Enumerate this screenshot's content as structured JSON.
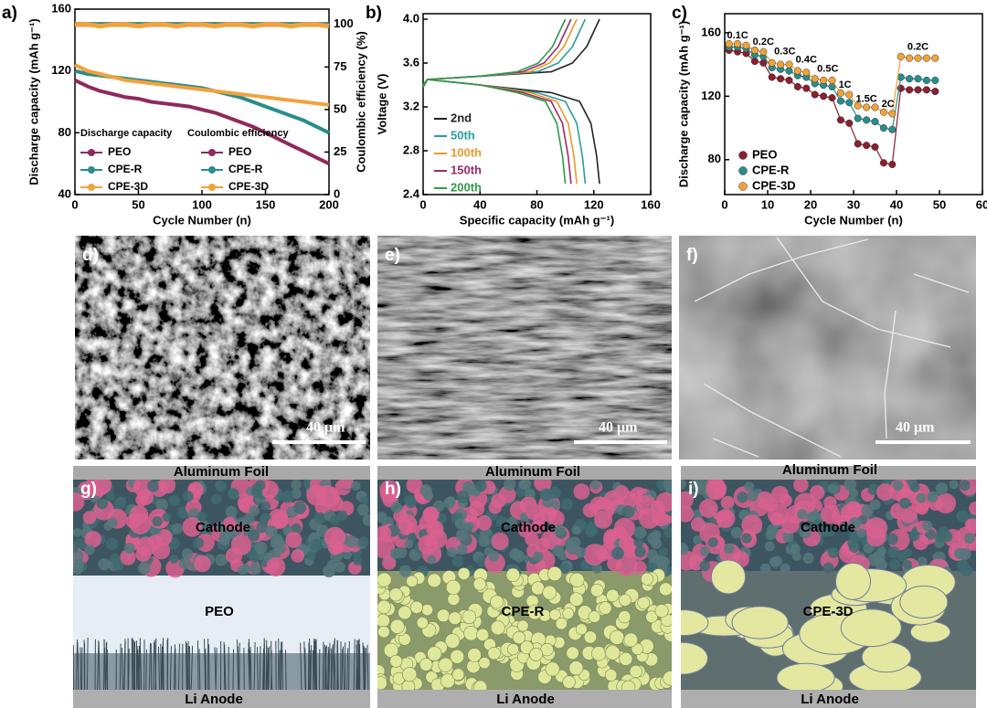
{
  "chart_data": [
    {
      "type": "line",
      "panel_label": "a)",
      "xlabel": "Cycle Number (n)",
      "ylabel": "Discharge capacity (mAh g⁻¹)",
      "y2label": "Coulombic efficiency (%)",
      "legend_titles": [
        "Discharge capacity",
        "Coulombic efficiency"
      ],
      "x": [
        0,
        10,
        20,
        30,
        40,
        50,
        60,
        70,
        80,
        90,
        100,
        110,
        120,
        130,
        140,
        150,
        160,
        170,
        180,
        190,
        200
      ],
      "xlim": [
        0,
        200
      ],
      "xticks": [
        0,
        50,
        100,
        150,
        200
      ],
      "ylim": [
        40,
        160
      ],
      "yticks": [
        40,
        80,
        120,
        160
      ],
      "y2lim": [
        0,
        109
      ],
      "y2ticks": [
        0,
        25,
        50,
        75,
        100
      ],
      "series": [
        {
          "name": "PEO",
          "color": "#8e2a5a",
          "values": [
            114,
            110,
            107,
            105,
            103,
            102,
            100,
            99,
            98,
            97,
            95,
            93,
            90,
            87,
            84,
            80,
            76,
            72,
            68,
            64,
            60
          ]
        },
        {
          "name": "CPE-R",
          "color": "#2a8c8c",
          "values": [
            120,
            118,
            117,
            116,
            115,
            114,
            113,
            112,
            111,
            110,
            109,
            107,
            105,
            103,
            100,
            97,
            94,
            91,
            88,
            84,
            80
          ]
        },
        {
          "name": "CPE-3D",
          "color": "#f2a23a",
          "values": [
            124,
            120,
            118,
            116,
            114,
            113,
            112,
            111,
            110,
            109,
            108,
            107,
            106,
            105,
            104,
            103,
            102,
            101,
            100,
            99,
            98
          ]
        },
        {
          "name": "PEO",
          "color": "#8e2a5a",
          "axis": "y2",
          "values": [
            100,
            100,
            100,
            100,
            100,
            100,
            100,
            100,
            100,
            100,
            100,
            100,
            100,
            100,
            100,
            100,
            100,
            100,
            100,
            100,
            100
          ]
        },
        {
          "name": "CPE-R",
          "color": "#2a8c8c",
          "axis": "y2",
          "values": [
            100,
            100,
            100,
            100,
            100,
            100,
            100,
            100,
            100,
            100,
            100,
            100,
            100,
            100,
            100,
            100,
            100,
            100,
            100,
            100,
            100
          ]
        },
        {
          "name": "CPE-3D",
          "color": "#f2a23a",
          "axis": "y2",
          "values": [
            100,
            100,
            99,
            100,
            100,
            99,
            100,
            100,
            99,
            100,
            100,
            99,
            100,
            100,
            99,
            100,
            100,
            99,
            100,
            100,
            99
          ]
        }
      ]
    },
    {
      "type": "line",
      "panel_label": "b)",
      "xlabel": "Specific capacity (mAh g⁻¹)",
      "ylabel": "Voltage (V)",
      "xlim": [
        0,
        160
      ],
      "xticks": [
        0,
        40,
        80,
        120,
        160
      ],
      "ylim": [
        2.4,
        4.05
      ],
      "yticks": [
        2.4,
        2.8,
        3.2,
        3.6,
        {
          "value": 4,
          "label": "4.0"
        }
      ],
      "series": [
        {
          "name": "2nd",
          "color": "#222222",
          "charge_x": [
            0,
            3,
            40,
            90,
            105,
            115,
            124
          ],
          "charge_values": [
            3.4,
            3.45,
            3.48,
            3.52,
            3.6,
            3.75,
            4.0
          ],
          "discharge_x": [
            0,
            3,
            40,
            90,
            110,
            118,
            122,
            124
          ],
          "discharge_values": [
            3.38,
            3.45,
            3.4,
            3.33,
            3.25,
            3.05,
            2.75,
            2.5
          ]
        },
        {
          "name": "50th",
          "color": "#2a9d9d",
          "charge_x": [
            0,
            3,
            40,
            80,
            95,
            105,
            114
          ],
          "charge_values": [
            3.4,
            3.45,
            3.48,
            3.52,
            3.6,
            3.75,
            4.0
          ],
          "discharge_x": [
            0,
            3,
            40,
            80,
            100,
            108,
            112,
            114
          ],
          "discharge_values": [
            3.38,
            3.45,
            3.4,
            3.33,
            3.25,
            3.05,
            2.75,
            2.5
          ]
        },
        {
          "name": "100th",
          "color": "#e89a28",
          "charge_x": [
            0,
            3,
            40,
            75,
            89,
            99,
            108
          ],
          "charge_values": [
            3.4,
            3.45,
            3.48,
            3.52,
            3.6,
            3.75,
            4.0
          ],
          "discharge_x": [
            0,
            3,
            40,
            75,
            94,
            102,
            106,
            108
          ],
          "discharge_values": [
            3.38,
            3.45,
            3.4,
            3.33,
            3.25,
            3.05,
            2.75,
            2.5
          ]
        },
        {
          "name": "150th",
          "color": "#9b2a6a",
          "charge_x": [
            0,
            3,
            40,
            70,
            85,
            95,
            104
          ],
          "charge_values": [
            3.4,
            3.45,
            3.48,
            3.52,
            3.6,
            3.75,
            4.0
          ],
          "discharge_x": [
            0,
            3,
            40,
            70,
            90,
            98,
            102,
            104
          ],
          "discharge_values": [
            3.38,
            3.45,
            3.4,
            3.33,
            3.25,
            3.05,
            2.75,
            2.5
          ]
        },
        {
          "name": "200th",
          "color": "#2e9a4a",
          "charge_x": [
            0,
            3,
            40,
            66,
            81,
            91,
            100
          ],
          "charge_values": [
            3.4,
            3.45,
            3.48,
            3.52,
            3.6,
            3.75,
            4.0
          ],
          "discharge_x": [
            0,
            3,
            40,
            66,
            86,
            94,
            98,
            100
          ],
          "discharge_values": [
            3.38,
            3.45,
            3.4,
            3.33,
            3.25,
            3.05,
            2.75,
            2.5
          ]
        }
      ]
    },
    {
      "type": "scatter",
      "panel_label": "c)",
      "xlabel": "Cycle Number (n)",
      "ylabel": "Discharge capacity (mAh g⁻¹)",
      "x": [
        1,
        3,
        5,
        7,
        9,
        11,
        13,
        15,
        17,
        19,
        21,
        23,
        25,
        27,
        29,
        31,
        33,
        35,
        37,
        39,
        41,
        43,
        45,
        47,
        49
      ],
      "xlim": [
        0,
        60
      ],
      "xticks": [
        0,
        10,
        20,
        30,
        40,
        50,
        60
      ],
      "ylim": [
        58,
        172
      ],
      "yticks": [
        80,
        120,
        160
      ],
      "series": [
        {
          "name": "PEO",
          "color": "#8b1f2e",
          "values": [
            149,
            148,
            147,
            142,
            141,
            132,
            131,
            130,
            126,
            125,
            121,
            120,
            119,
            105,
            103,
            90,
            89,
            88,
            78,
            77,
            125,
            124,
            124,
            124,
            123
          ]
        },
        {
          "name": "CPE-R",
          "color": "#2a8c8c",
          "values": [
            151,
            151,
            150,
            146,
            145,
            138,
            137,
            136,
            133,
            132,
            128,
            127,
            126,
            117,
            116,
            106,
            105,
            104,
            100,
            99,
            132,
            131,
            131,
            130,
            130
          ]
        },
        {
          "name": "CPE-3D",
          "color": "#f2a23a",
          "values": [
            153,
            153,
            152,
            149,
            148,
            141,
            140,
            140,
            136,
            135,
            131,
            130,
            130,
            122,
            121,
            114,
            113,
            113,
            110,
            109,
            145,
            144,
            144,
            144,
            144
          ]
        }
      ],
      "annotations": [
        {
          "text": "0.1C",
          "x": 3,
          "y": 158
        },
        {
          "text": "0.2C",
          "x": 9,
          "y": 154
        },
        {
          "text": "0.3C",
          "x": 14,
          "y": 148
        },
        {
          "text": "0.4C",
          "x": 19,
          "y": 143
        },
        {
          "text": "0.5C",
          "x": 24,
          "y": 137
        },
        {
          "text": "1C",
          "x": 28,
          "y": 127
        },
        {
          "text": "1.5C",
          "x": 33,
          "y": 118
        },
        {
          "text": "2C",
          "x": 38,
          "y": 115
        },
        {
          "text": "0.2C",
          "x": 45,
          "y": 151
        }
      ]
    }
  ],
  "sem": [
    {
      "label": "d)",
      "scale": "40 μm"
    },
    {
      "label": "e)",
      "scale": "40 μm"
    },
    {
      "label": "f)",
      "scale": "40 μm"
    }
  ],
  "schematics": [
    {
      "label": "g)",
      "top": "Aluminum Foil",
      "cathode": "Cathode",
      "electrolyte": "PEO",
      "bottom": "Li Anode"
    },
    {
      "label": "h)",
      "top": "Aluminum Foil",
      "cathode": "Cathode",
      "electrolyte": "CPE-R",
      "bottom": "Li Anode"
    },
    {
      "label": "i)",
      "top": "Aluminum Foil",
      "cathode": "Cathode",
      "electrolyte": "CPE-3D",
      "bottom": "Li Anode"
    }
  ]
}
